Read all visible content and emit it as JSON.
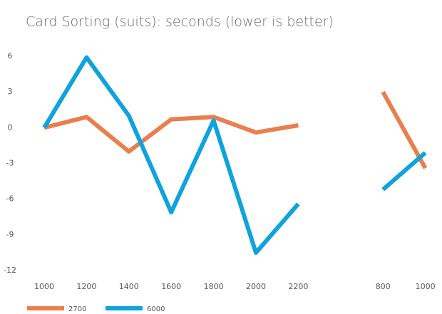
{
  "chart_data": {
    "type": "line",
    "title": "Card Sorting (suits): seconds (lower is better)",
    "categories": [
      "1000",
      "1200",
      "1400",
      "1600",
      "1800",
      "2000",
      "2200",
      null,
      "800",
      "1000"
    ],
    "series": [
      {
        "name": "2700",
        "color": "#e97f4e",
        "values": [
          0,
          0.9,
          -2,
          0.7,
          0.9,
          -0.4,
          0.2,
          null,
          3,
          -3.4
        ]
      },
      {
        "name": "6000",
        "color": "#0fa3dd",
        "values": [
          0,
          5.9,
          1,
          -7.1,
          0.6,
          -10.5,
          -6.4,
          null,
          -5.2,
          -2.1
        ]
      }
    ],
    "ylim": [
      -12,
      6
    ],
    "yticks": [
      -12,
      -9,
      -6,
      -3,
      0,
      3,
      6
    ],
    "grid": false,
    "legend": "bottom-left"
  }
}
